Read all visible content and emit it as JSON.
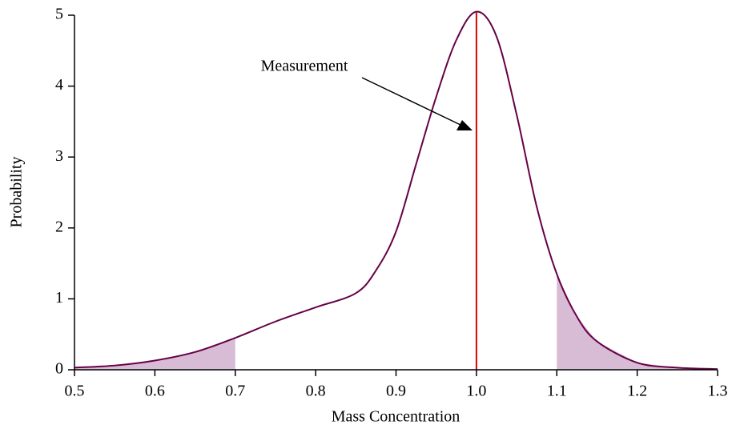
{
  "chart_data": {
    "type": "line",
    "xlabel": "Mass Concentration",
    "ylabel": "Probability",
    "x": [
      0.5,
      0.55,
      0.6,
      0.65,
      0.7,
      0.75,
      0.8,
      0.85,
      0.875,
      0.9,
      0.925,
      0.95,
      0.975,
      1.0,
      1.025,
      1.05,
      1.075,
      1.1,
      1.125,
      1.15,
      1.2,
      1.25,
      1.3
    ],
    "values": [
      0.03,
      0.06,
      0.13,
      0.25,
      0.45,
      0.68,
      0.88,
      1.08,
      1.4,
      1.95,
      2.9,
      3.85,
      4.65,
      5.05,
      4.7,
      3.6,
      2.3,
      1.35,
      0.75,
      0.4,
      0.1,
      0.03,
      0.01
    ],
    "color": "#660046",
    "shaded": [
      [
        0.5,
        0.7
      ],
      [
        1.1,
        1.3
      ]
    ],
    "shade_color": "#d8bcd6",
    "measurement": {
      "label": "Measurement",
      "value": 1,
      "color": "#e00000"
    },
    "xlim": [
      0.5,
      1.3
    ],
    "xticks": [
      0.5,
      0.6,
      0.7,
      0.8,
      0.9,
      {
        "value": 1,
        "label": "1.0"
      },
      1.1,
      1.2,
      1.3
    ],
    "ylim": [
      0,
      5
    ],
    "yticks": [
      0,
      1,
      2,
      3,
      4,
      5
    ],
    "grid": false
  }
}
